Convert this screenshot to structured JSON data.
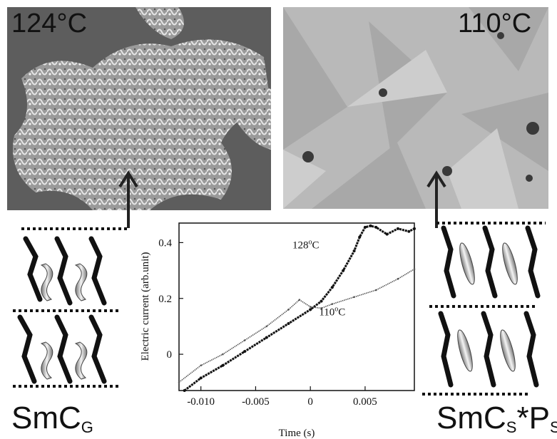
{
  "figure": {
    "left_photo": {
      "temp_label": "124°C"
    },
    "right_photo": {
      "temp_label": "110°C"
    },
    "left_phase": {
      "main": "SmC",
      "sub": "G"
    },
    "right_phase": {
      "main": "SmC",
      "sub1": "S",
      "mid": "*P",
      "sub2": "S"
    }
  },
  "chart_data": {
    "type": "line",
    "xlabel": "Time (s)",
    "ylabel": "Electric current (arb.unit)",
    "xlim": [
      -0.012,
      0.0095
    ],
    "ylim": [
      -0.13,
      0.47
    ],
    "xticks": [
      -0.01,
      -0.005,
      0,
      0.005
    ],
    "xtick_labels": [
      "-0.010",
      "-0.005",
      "0",
      "0.005"
    ],
    "yticks": [
      0,
      0.2,
      0.4
    ],
    "ytick_labels": [
      "0",
      "0.2",
      "0.4"
    ],
    "series": [
      {
        "name": "128°C",
        "label_text": "128",
        "x": [
          -0.0115,
          -0.01,
          -0.008,
          -0.006,
          -0.004,
          -0.002,
          0,
          0.001,
          0.002,
          0.003,
          0.004,
          0.0045,
          0.005,
          0.0055,
          0.006,
          0.007,
          0.008,
          0.009,
          0.0095
        ],
        "y": [
          -0.13,
          -0.085,
          -0.04,
          0.01,
          0.06,
          0.11,
          0.16,
          0.19,
          0.24,
          0.3,
          0.37,
          0.42,
          0.455,
          0.46,
          0.455,
          0.43,
          0.45,
          0.44,
          0.45
        ]
      },
      {
        "name": "110°C",
        "label_text": "110",
        "x": [
          -0.012,
          -0.01,
          -0.008,
          -0.006,
          -0.004,
          -0.002,
          -0.001,
          0,
          0.001,
          0.002,
          0.004,
          0.006,
          0.008,
          0.0095
        ],
        "y": [
          -0.1,
          -0.04,
          0.0,
          0.05,
          0.1,
          0.16,
          0.195,
          0.17,
          0.165,
          0.18,
          0.205,
          0.23,
          0.27,
          0.305
        ]
      }
    ]
  }
}
